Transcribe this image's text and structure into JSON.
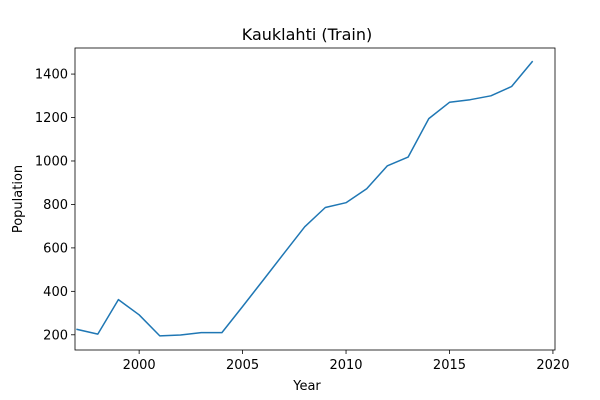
{
  "chart_data": {
    "type": "line",
    "title": "Kauklahti (Train)",
    "xlabel": "Year",
    "ylabel": "Population",
    "xlim": [
      1996.9,
      2020.1
    ],
    "ylim": [
      130,
      1520
    ],
    "xticks": [
      2000,
      2005,
      2010,
      2015,
      2020
    ],
    "xtick_labels": [
      "2000",
      "2005",
      "2010",
      "2015",
      "2020"
    ],
    "yticks": [
      200,
      400,
      600,
      800,
      1000,
      1200,
      1400
    ],
    "ytick_labels": [
      "200",
      "400",
      "600",
      "800",
      "1000",
      "1200",
      "1400"
    ],
    "grid": false,
    "series": [
      {
        "name": "Kauklahti",
        "color": "#1f77b4",
        "x": [
          1997,
          1998,
          1999,
          2000,
          2001,
          2002,
          2003,
          2004,
          2005,
          2006,
          2007,
          2008,
          2009,
          2010,
          2011,
          2012,
          2013,
          2014,
          2015,
          2016,
          2017,
          2018,
          2019
        ],
        "y": [
          225,
          203,
          362,
          292,
          195,
          199,
          210,
          210,
          330,
          452,
          575,
          697,
          786,
          808,
          872,
          978,
          1018,
          1195,
          1270,
          1282,
          1300,
          1343,
          1457
        ]
      }
    ]
  }
}
